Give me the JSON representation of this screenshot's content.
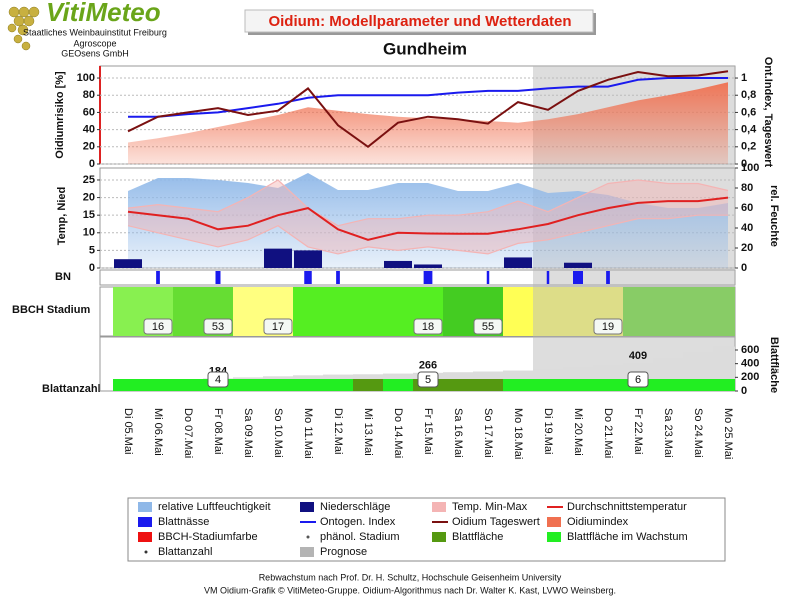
{
  "header": {
    "logo": "VitiMeteo",
    "logo_lines": [
      "Staatliches Weinbauinstitut Freiburg",
      "Agroscope",
      "GEOsens GmbH"
    ],
    "title": "Oidium: Modellparameter und Wetterdaten",
    "location": "Gundheim"
  },
  "chart_data": [
    {
      "type": "line",
      "ylabel": "Oidiumrisiko [%]",
      "y2label": "Ont.Index, Tageswert",
      "grid": true,
      "ylim": [
        0,
        114
      ],
      "yticks": [
        0,
        20,
        40,
        60,
        80,
        100
      ],
      "y2lim": [
        0,
        1.14
      ],
      "y2ticks": [
        0,
        {
          "value": 0.2,
          "label": "0,2"
        },
        {
          "value": 0.4,
          "label": "0,4"
        },
        {
          "value": 0.6,
          "label": "0,6"
        },
        {
          "value": 0.8,
          "label": "0,8"
        },
        1
      ],
      "series": [
        {
          "name": "Oidiumindex",
          "style": "area",
          "color": "#f07050",
          "values": [
            25,
            30,
            36,
            43,
            50,
            57,
            66,
            62,
            58,
            55,
            53,
            52,
            50,
            48,
            52,
            58,
            66,
            74,
            80,
            87,
            95
          ]
        },
        {
          "name": "Ontogen. Index",
          "style": "line",
          "color": "#1a1aee",
          "axis": "y2",
          "values": [
            0.55,
            0.55,
            0.58,
            0.6,
            0.65,
            0.7,
            0.77,
            0.8,
            0.8,
            0.8,
            0.8,
            0.83,
            0.85,
            0.85,
            0.88,
            0.9,
            0.9,
            0.98,
            1.0,
            1.0,
            1.0
          ]
        },
        {
          "name": "Oidium Tageswert",
          "style": "line",
          "color": "#7a1010",
          "axis": "y2",
          "values": [
            0.38,
            0.55,
            0.6,
            0.65,
            0.57,
            0.62,
            0.88,
            0.45,
            0.2,
            0.48,
            0.55,
            0.52,
            0.47,
            0.72,
            0.63,
            0.85,
            0.98,
            1.07,
            1.02,
            1.03,
            1.08
          ]
        }
      ]
    },
    {
      "type": "line",
      "ylabel": "Temp, Nied",
      "y2label": "rel. Feuchte",
      "grid": true,
      "ylim": [
        0,
        28.4
      ],
      "yticks": [
        0,
        5,
        10,
        15,
        20,
        25
      ],
      "y2lim": [
        0,
        100
      ],
      "y2ticks": [
        0,
        20,
        40,
        60,
        80,
        100
      ],
      "series": [
        {
          "name": "relative Luftfeuchtigkeit",
          "style": "area",
          "color": "#8fb8e8",
          "axis": "y2",
          "values": [
            77,
            90,
            90,
            88,
            85,
            80,
            95,
            78,
            78,
            85,
            85,
            77,
            77,
            85,
            75,
            77,
            73,
            65,
            60,
            60,
            65
          ]
        },
        {
          "name": "Temp. Min-Max",
          "style": "band",
          "color": "#f4b4b4",
          "values": [
            17,
            18,
            17,
            16,
            20,
            25,
            17,
            12,
            14,
            14,
            15,
            15,
            16,
            19,
            16,
            20,
            24,
            25,
            24,
            24,
            22
          ],
          "low_values": [
            12,
            10,
            8,
            6,
            8,
            12,
            6,
            4,
            6,
            5,
            6,
            5,
            4,
            7,
            8,
            10,
            12,
            14,
            14,
            15,
            15
          ]
        },
        {
          "name": "Niederschläge",
          "style": "bar",
          "color": "#101080",
          "values": [
            2.5,
            0,
            0,
            0,
            0,
            5.5,
            5,
            0,
            0,
            2,
            1,
            0,
            0,
            3,
            0,
            1.5,
            0,
            0,
            0,
            0,
            0
          ]
        },
        {
          "name": "Durchschnittstemperatur",
          "style": "line",
          "color": "#e02020",
          "values": [
            16,
            15,
            14,
            11,
            12,
            15,
            17,
            11,
            8,
            10,
            9.8,
            9.7,
            9.7,
            11,
            12.5,
            15,
            17,
            18.5,
            19,
            19,
            20
          ]
        }
      ]
    },
    {
      "type": "duration",
      "ylabel": "BN",
      "series": [
        {
          "name": "Blattnässe",
          "style": "duration",
          "color": "#1a1aee",
          "values": [
            0,
            3,
            0,
            4,
            0,
            0,
            6,
            3,
            0,
            0,
            7,
            0,
            2,
            0,
            2,
            8,
            3,
            0,
            0,
            0,
            0
          ]
        }
      ]
    },
    {
      "type": "stages",
      "ylabel": "BBCH Stadium",
      "colors": [
        "#88f050",
        "#88f050",
        "#66dd33",
        "#66dd33",
        "#ffff80",
        "#ffff80",
        "#55ee22",
        "#55ee22",
        "#55ee22",
        "#55ee22",
        "#55ee22",
        "#44cc22",
        "#44cc22",
        "#ffff55",
        "#dddd88",
        "#dddd88",
        "#dddd88",
        "#88cc66",
        "#88cc66",
        "#88cc66",
        "#88cc66"
      ],
      "labels": [
        null,
        "16",
        null,
        "53",
        null,
        "17",
        null,
        null,
        null,
        null,
        "18",
        null,
        "55",
        null,
        null,
        null,
        "19",
        null,
        null,
        null,
        null
      ],
      "stage_color": {
        "name": "BBCH-Stadiumfarbe",
        "style": "box",
        "color": "#ee1111"
      },
      "stage_marker": {
        "name": "phänol. Stadium",
        "style": "dot",
        "color": "#555555"
      }
    },
    {
      "type": "bar",
      "ylabel": "Blattanzahl",
      "y2label": "Blattfläche",
      "categories": [
        "Di 05.Mai",
        "Mi 06.Mai",
        "Do 07.Mai",
        "Fr 08.Mai",
        "Sa 09.Mai",
        "So 10.Mai",
        "Mo 11.Mai",
        "Di 12.Mai",
        "Mi 13.Mai",
        "Do 14.Mai",
        "Fr 15.Mai",
        "Sa 16.Mai",
        "So 17.Mai",
        "Mo 18.Mai",
        "Di 19.Mai",
        "Mi 20.Mai",
        "Do 21.Mai",
        "Fr 22.Mai",
        "Sa 23.Mai",
        "So 24.Mai",
        "Mo 25.Mai"
      ],
      "y2lim": [
        0,
        790
      ],
      "y2ticks": [
        0,
        200,
        400,
        600
      ],
      "series": [
        {
          "name": "Blattfläche",
          "style": "bar",
          "color": "#559911",
          "area_color": "#dcdcdc",
          "values": [
            100,
            120,
            150,
            184,
            200,
            215,
            230,
            240,
            245,
            255,
            266,
            275,
            285,
            300,
            320,
            350,
            380,
            409,
            480,
            560,
            650
          ],
          "value_labels": [
            null,
            null,
            null,
            "184",
            null,
            null,
            null,
            null,
            null,
            null,
            "266",
            null,
            null,
            null,
            null,
            null,
            null,
            "409",
            null,
            null,
            null
          ],
          "growing": [
            true,
            true,
            true,
            true,
            true,
            true,
            true,
            true,
            false,
            true,
            false,
            false,
            false,
            true,
            true,
            true,
            true,
            true,
            true,
            true,
            true
          ]
        }
      ],
      "growth": {
        "name": "Blattfläche im Wachstum",
        "style": "box",
        "color": "#22ee22"
      },
      "leaf_count": {
        "name": "Blattanzahl",
        "style": "dot",
        "color": "#333333",
        "values": [
          null,
          null,
          null,
          4,
          null,
          null,
          null,
          null,
          null,
          null,
          5,
          null,
          null,
          null,
          null,
          null,
          null,
          6,
          null,
          null,
          null
        ]
      }
    }
  ],
  "forecast": {
    "name": "Prognose",
    "style": "box",
    "from": "Di 19.Mai",
    "color": "#b4b4b4"
  },
  "footer": [
    "Rebwachstum nach Prof. Dr. H. Schultz, Hochschule Geisenheim University",
    "VM Oidium-Grafik © VitiMeteo-Gruppe. Oidium-Algorithmus nach Dr. Walter K. Kast, LVWO Weinsberg."
  ]
}
